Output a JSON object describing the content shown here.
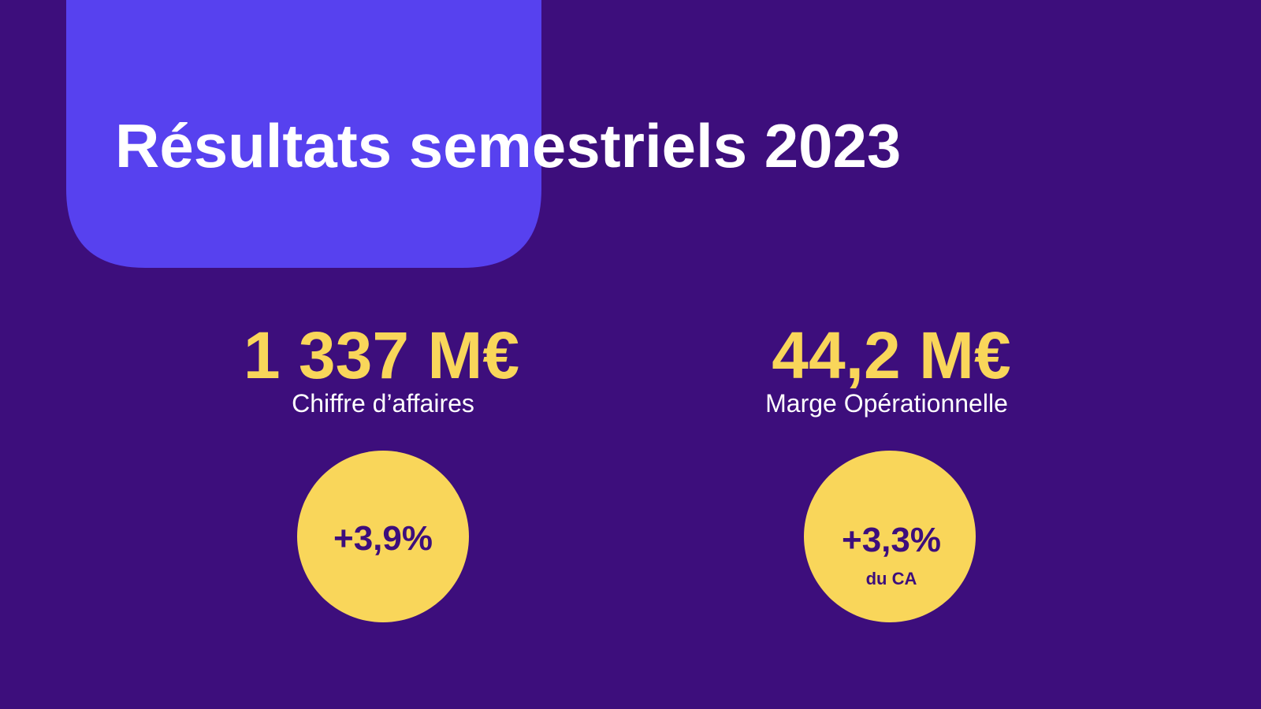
{
  "title": "Résultats semestriels 2023",
  "metrics": [
    {
      "value": "1 337 M€",
      "label": "Chiffre d’affaires",
      "badge": "+3,9%"
    },
    {
      "value": "44,2 M€",
      "label": "Marge Opérationnelle",
      "badge": "+3,3%",
      "badge_note": "du CA"
    }
  ]
}
